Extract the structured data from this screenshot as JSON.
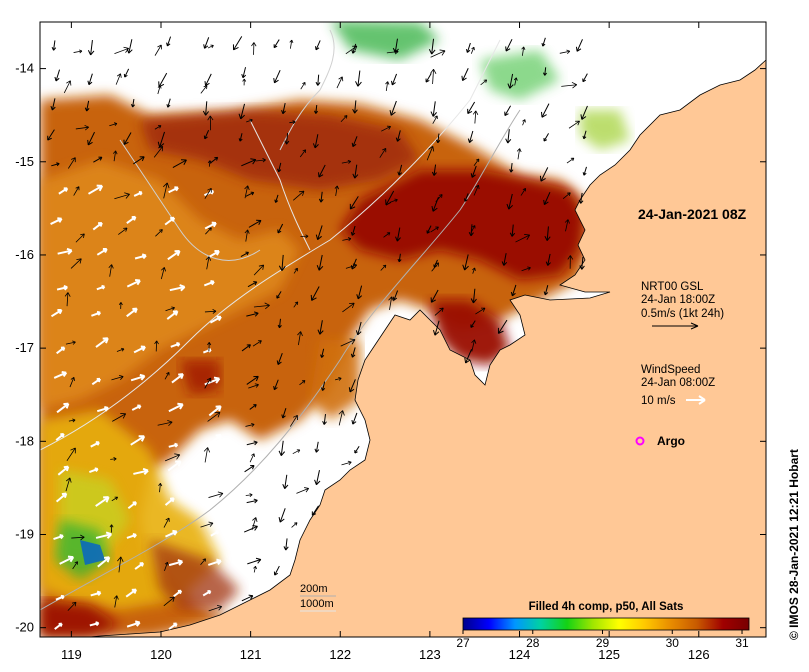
{
  "map": {
    "lon_ticks": [
      "119",
      "120",
      "121",
      "122",
      "123",
      "124",
      "125",
      "126"
    ],
    "lat_ticks": [
      "-14",
      "-15",
      "-16",
      "-17",
      "-18",
      "-19",
      "-20"
    ],
    "lon_range": [
      118.65,
      126.75
    ],
    "lat_range": [
      -20.1,
      -13.5
    ]
  },
  "annotations": {
    "timestamp": "24-Jan-2021 08Z",
    "current_product": "NRT00 GSL",
    "current_time": "24-Jan 18:00Z",
    "current_scale": "0.5m/s (1kt 24h)",
    "wind_product": "WindSpeed",
    "wind_time": "24-Jan 08:00Z",
    "wind_scale": "10 m/s",
    "argo_label": "Argo"
  },
  "contours": {
    "label_200m": "200m",
    "label_1000m": "1000m"
  },
  "colorbar": {
    "title": "Filled 4h comp, p50, All Sats",
    "ticks": [
      "27",
      "28",
      "29",
      "30",
      "31"
    ],
    "range": [
      27,
      31.1
    ],
    "stops": [
      "#00008b",
      "#0000ff",
      "#0096ff",
      "#00d2a0",
      "#14d214",
      "#a0e600",
      "#ffff00",
      "#ffc800",
      "#e88c00",
      "#c85a00",
      "#a00000",
      "#780000"
    ]
  },
  "credit": "© IMOS 28-Jan-2021 12:21 Hobart",
  "colors": {
    "land": "#ffc896",
    "warm": "#c85a0a",
    "hot": "#a01000",
    "coast": "#000000"
  }
}
